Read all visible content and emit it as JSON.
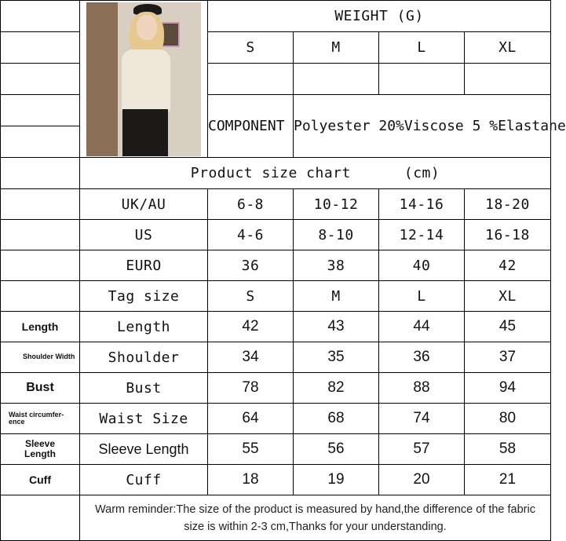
{
  "weight": {
    "title": "WEIGHT (G)",
    "sizes": [
      "S",
      "M",
      "L",
      "XL"
    ]
  },
  "component": {
    "label": "COMPONENT",
    "value": "Polyester 20%Viscose 5 %Elastane"
  },
  "chart_title": "Product size chart      (cm)",
  "rows": [
    {
      "label": "UK/AU",
      "values": [
        "6-8",
        "10-12",
        "14-16",
        "18-20"
      ]
    },
    {
      "label": "US",
      "values": [
        "4-6",
        "8-10",
        "12-14",
        "16-18"
      ]
    },
    {
      "label": "EURO",
      "values": [
        "36",
        "38",
        "40",
        "42"
      ]
    },
    {
      "label": "Tag size",
      "values": [
        "S",
        "M",
        "L",
        "XL"
      ]
    }
  ],
  "measures": [
    {
      "side": "Length",
      "label": "Length",
      "values": [
        "42",
        "43",
        "44",
        "45"
      ]
    },
    {
      "side": "Shoulder Width",
      "label": "Shoulder",
      "values": [
        "34",
        "35",
        "36",
        "37"
      ]
    },
    {
      "side": "Bust",
      "label": "Bust",
      "values": [
        "78",
        "82",
        "88",
        "94"
      ]
    },
    {
      "side": "Waist circumfer-ence",
      "label": "Waist Size",
      "values": [
        "64",
        "68",
        "74",
        "80"
      ]
    },
    {
      "side": "Sleeve Length",
      "label": "Sleeve Length",
      "values": [
        "55",
        "56",
        "57",
        "58"
      ]
    },
    {
      "side": "Cuff",
      "label": "Cuff",
      "values": [
        "18",
        "19",
        "20",
        "21"
      ]
    }
  ],
  "note": "Warm reminder:The size of the product is measured by hand,the difference of the fabric size is within 2-3 cm,Thanks for your understanding."
}
